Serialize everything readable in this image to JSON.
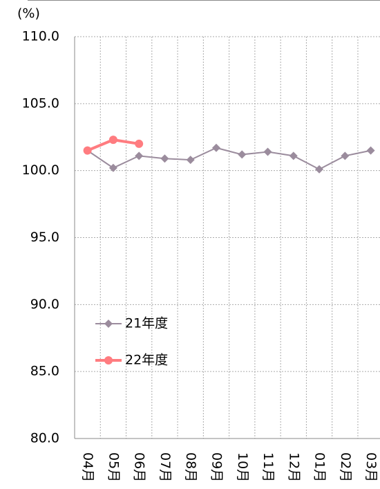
{
  "chart_data": {
    "type": "line",
    "y_unit_label": "(%)",
    "categories": [
      "04月",
      "05月",
      "06月",
      "07月",
      "08月",
      "09月",
      "10月",
      "11月",
      "12月",
      "01月",
      "02月",
      "03月"
    ],
    "series": [
      {
        "name": "21年度",
        "color": "#9b8c9d",
        "marker": "diamond",
        "values": [
          101.5,
          100.2,
          101.1,
          100.9,
          100.8,
          101.7,
          101.2,
          101.4,
          101.1,
          100.1,
          101.1,
          101.5
        ]
      },
      {
        "name": "22年度",
        "color": "#ff7c80",
        "marker": "circle",
        "values": [
          101.5,
          102.3,
          102.0,
          null,
          null,
          null,
          null,
          null,
          null,
          null,
          null,
          null
        ]
      }
    ],
    "ylim": [
      80,
      110
    ],
    "yticks": [
      {
        "value": 80,
        "label": "80.0"
      },
      {
        "value": 85,
        "label": "85.0"
      },
      {
        "value": 90,
        "label": "90.0"
      },
      {
        "value": 95,
        "label": "95.0"
      },
      {
        "value": 100,
        "label": "100.0"
      },
      {
        "value": 105,
        "label": "105.0"
      },
      {
        "value": 110,
        "label": "110.0"
      }
    ],
    "grid": true
  }
}
